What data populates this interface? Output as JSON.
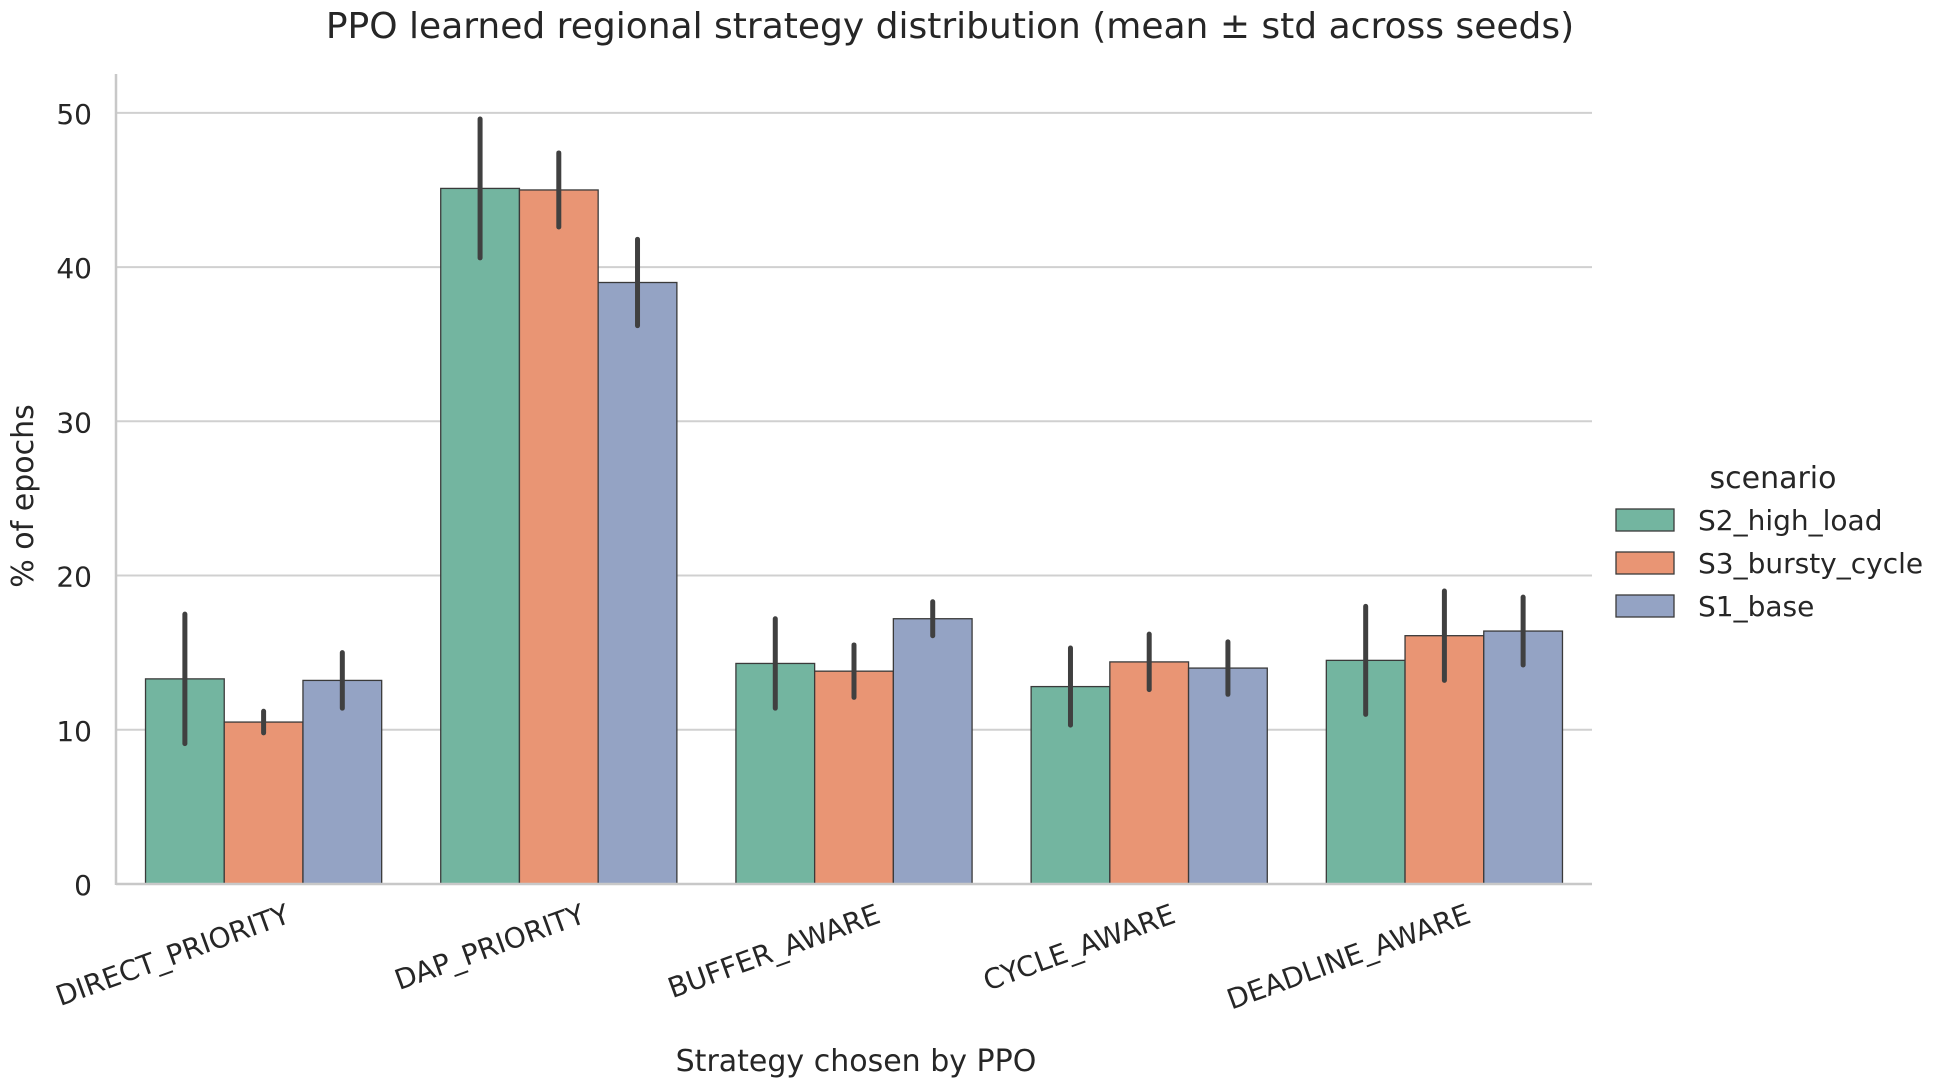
{
  "chart_data": {
    "type": "bar",
    "title": "PPO learned regional strategy distribution (mean ± std across seeds)",
    "xlabel": "Strategy chosen by PPO",
    "ylabel": "% of epochs",
    "categories": [
      "DIRECT_PRIORITY",
      "DAP_PRIORITY",
      "BUFFER_AWARE",
      "CYCLE_AWARE",
      "DEADLINE_AWARE"
    ],
    "ylim": [
      0,
      52
    ],
    "yticks": [
      0,
      10,
      20,
      30,
      40,
      50
    ],
    "grid": "horizontal",
    "legend": {
      "title": "scenario",
      "placement": "right"
    },
    "series": [
      {
        "name": "S2_high_load",
        "color": "#73b5a0",
        "values": [
          13.3,
          45.1,
          14.3,
          12.8,
          14.5
        ],
        "err": [
          4.2,
          4.5,
          2.9,
          2.5,
          3.5
        ]
      },
      {
        "name": "S3_bursty_cycle",
        "color": "#e99574",
        "values": [
          10.5,
          45.0,
          13.8,
          14.4,
          16.1
        ],
        "err": [
          0.7,
          2.4,
          1.7,
          1.8,
          2.9
        ]
      },
      {
        "name": "S1_base",
        "color": "#94a3c4",
        "values": [
          13.2,
          39.0,
          17.2,
          14.0,
          16.4
        ],
        "err": [
          1.8,
          2.8,
          1.1,
          1.7,
          2.2
        ]
      }
    ]
  }
}
